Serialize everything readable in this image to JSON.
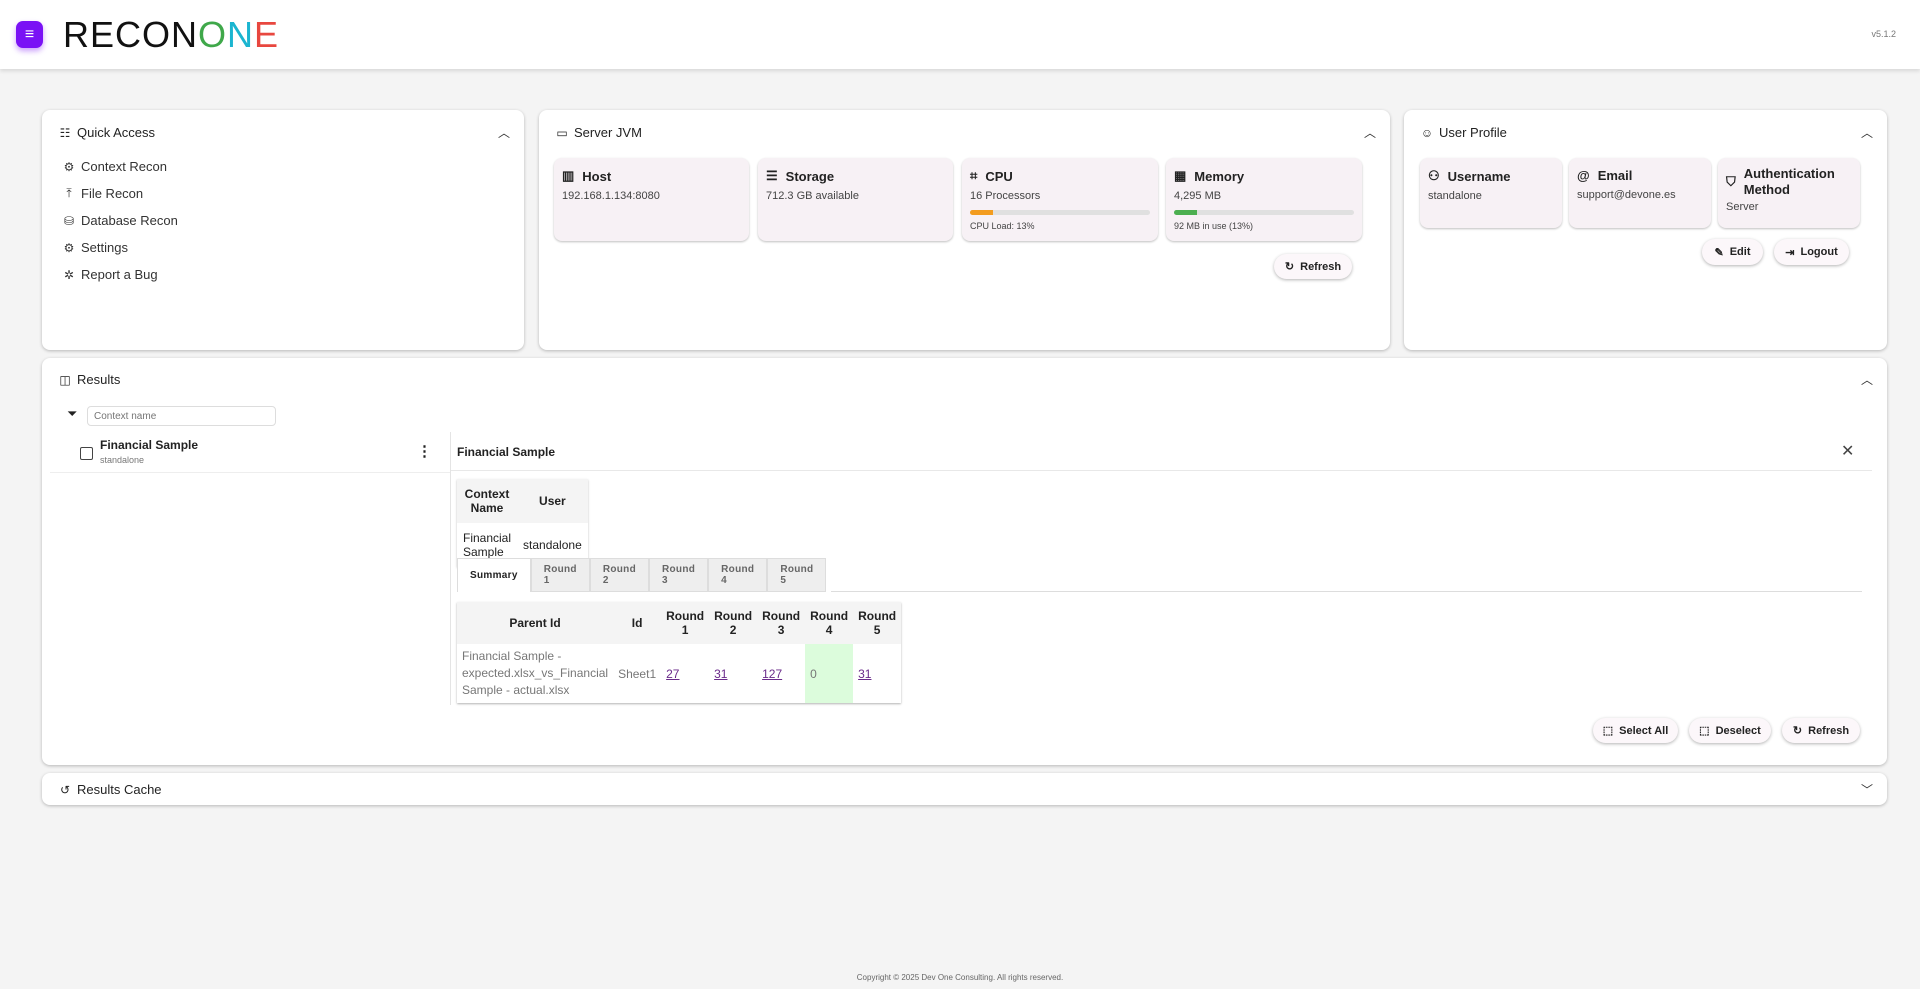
{
  "header": {
    "logo": {
      "part1": "RECON",
      "o": "O",
      "n": "N",
      "e": "E",
      "colors": {
        "part1": "#111111",
        "o": "#3fa84a",
        "n": "#1bb5d0",
        "e": "#e8473f"
      }
    },
    "version": "v5.1.2",
    "accent": "#7a12f5"
  },
  "quick_access": {
    "title": "Quick Access",
    "items": [
      {
        "label": "Context Recon",
        "icon": "context-gear-icon"
      },
      {
        "label": "File Recon",
        "icon": "upload-icon"
      },
      {
        "label": "Database Recon",
        "icon": "database-icon"
      },
      {
        "label": "Settings",
        "icon": "settings-icon"
      },
      {
        "label": "Report a Bug",
        "icon": "bug-icon"
      }
    ]
  },
  "server": {
    "title": "Server JVM",
    "host": {
      "label": "Host",
      "value": "192.168.1.134:8080"
    },
    "storage": {
      "label": "Storage",
      "value": "712.3 GB available"
    },
    "cpu": {
      "label": "CPU",
      "value": "16 Processors",
      "load_label": "CPU Load: 13%",
      "load": 13,
      "color": "#f39c1f"
    },
    "memory": {
      "label": "Memory",
      "value": "4,295 MB",
      "usage_label": "92 MB in use (13%)",
      "usage": 13,
      "color": "#4caf50"
    },
    "refresh": "Refresh"
  },
  "profile": {
    "title": "User Profile",
    "username": {
      "label": "Username",
      "value": "standalone"
    },
    "email": {
      "label": "Email",
      "value": "support@devone.es"
    },
    "auth": {
      "label": "Authentication Method",
      "value": "Server"
    },
    "edit": "Edit",
    "logout": "Logout"
  },
  "results": {
    "title": "Results",
    "filter_placeholder": "Context name",
    "list": [
      {
        "title": "Financial Sample",
        "user": "standalone"
      }
    ],
    "detail": {
      "title": "Financial Sample",
      "context_table": {
        "headers": [
          "Context Name",
          "User"
        ],
        "row": [
          "Financial Sample",
          "standalone"
        ]
      },
      "tabs": [
        "Summary",
        "Round 1",
        "Round 2",
        "Round 3",
        "Round 4",
        "Round 5"
      ],
      "active_tab": "Summary",
      "summary": {
        "headers": [
          "Parent Id",
          "Id",
          "Round 1",
          "Round 2",
          "Round 3",
          "Round 4",
          "Round 5"
        ],
        "row": [
          "Financial Sample - expected.xlsx_vs_Financial Sample - actual.xlsx",
          "Sheet1",
          "27",
          "31",
          "127",
          "0",
          "31"
        ],
        "highlight_color": "#dcfcdc"
      }
    },
    "select_all": "Select All",
    "deselect": "Deselect",
    "refresh": "Refresh"
  },
  "results_cache": {
    "title": "Results Cache"
  },
  "footer": "Copyright © 2025 Dev One Consulting. All rights reserved."
}
